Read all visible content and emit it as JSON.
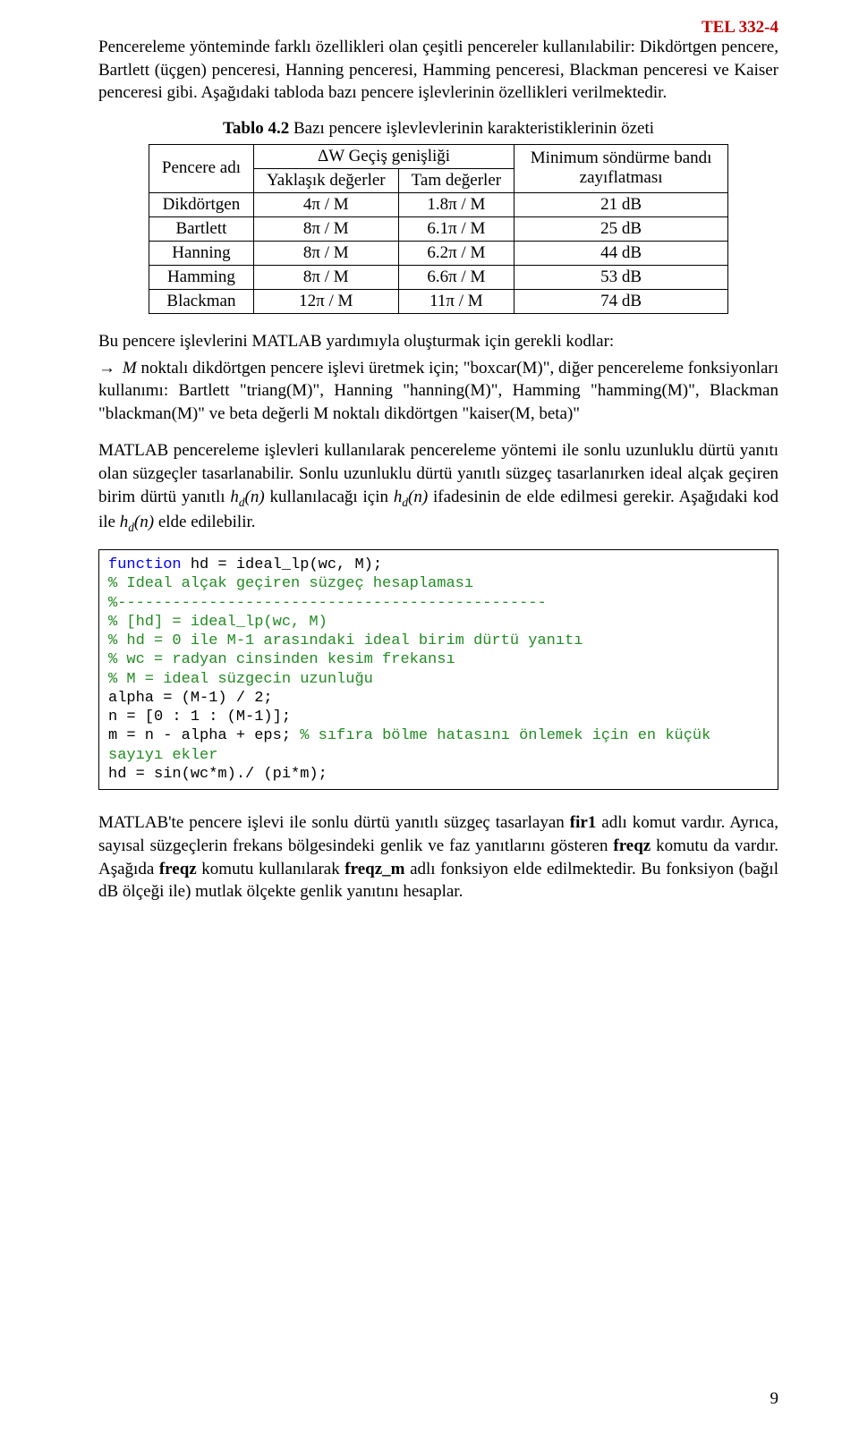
{
  "header": {
    "course_code": "TEL 332-4"
  },
  "intro_paragraph": "Pencereleme yönteminde farklı özellikleri olan çeşitli pencereler kullanılabilir: Dikdörtgen pencere, Bartlett (üçgen) penceresi, Hanning penceresi, Hamming penceresi, Blackman penceresi ve Kaiser penceresi gibi. Aşağıdaki tabloda bazı pencere işlevlerinin özellikleri verilmektedir.",
  "table": {
    "caption_bold": "Tablo 4.2",
    "caption_rest": " Bazı pencere işlevlevlerinin karakteristiklerinin özeti",
    "headers": {
      "col1": "Pencere adı",
      "group": "ΔW Geçiş genişliği",
      "sub1": "Yaklaşık değerler",
      "sub2": "Tam değerler",
      "col3": "Minimum söndürme bandı zayıflatması"
    },
    "rows": [
      {
        "name": "Dikdörtgen",
        "approx": "4π / M",
        "exact": "1.8π / M",
        "atten": "21 dB"
      },
      {
        "name": "Bartlett",
        "approx": "8π / M",
        "exact": "6.1π / M",
        "atten": "25 dB"
      },
      {
        "name": "Hanning",
        "approx": "8π / M",
        "exact": "6.2π / M",
        "atten": "44 dB"
      },
      {
        "name": "Hamming",
        "approx": "8π / M",
        "exact": "6.6π / M",
        "atten": "53 dB"
      },
      {
        "name": "Blackman",
        "approx": "12π / M",
        "exact": "11π / M",
        "atten": "74 dB"
      }
    ]
  },
  "after_table_line": "Bu pencere işlevlerini MATLAB yardımıyla oluşturmak için gerekli kodlar:",
  "bullet_paragraph": "M noktalı dikdörtgen pencere işlevi üretmek için; \"boxcar(M)\",  diğer pencereleme fonksiyonları kullanımı: Bartlett \"triang(M)\", Hanning \"hanning(M)\", Hamming \"hamming(M)\", Blackman \"blackman(M)\" ve beta değerli M noktalı dikdörtgen \"kaiser(M, beta)\"",
  "para_matlab1": "MATLAB pencereleme işlevleri kullanılarak pencereleme yöntemi ile sonlu uzunluklu dürtü yanıtı olan süzgeçler tasarlanabilir. Sonlu uzunluklu dürtü yanıtlı süzgeç tasarlanırken ideal alçak geçiren birim dürtü yanıtlı ",
  "para_matlab2": " kullanılacağı için ",
  "para_matlab3": " ifadesinin de elde edilmesi gerekir. Aşağıdaki kod ile ",
  "para_matlab4": " elde edilebilir.",
  "hd_fn": "h",
  "hd_sub": "d",
  "hd_arg": "(n)",
  "code": {
    "l01a": "function",
    "l01b": " hd = ideal_lp(wc, M);",
    "l02": "% Ideal alçak geçiren süzgeç hesaplaması",
    "l03": "%-----------------------------------------------",
    "l04": "% [hd] = ideal_lp(wc, M)",
    "l05": "% hd = 0 ile M-1 arasındaki ideal birim dürtü yanıtı",
    "l06": "% wc = radyan cinsinden kesim frekansı",
    "l07": "% M = ideal süzgecin uzunluğu",
    "l08": "alpha = (M-1) / 2;",
    "l09": "n = [0 : 1 : (M-1)];",
    "l10a": "m = n - alpha + eps; ",
    "l10b": "% sıfıra bölme hatasını önlemek için en küçük",
    "l10c": "sayıyı ekler",
    "l11": "hd = sin(wc*m)./ (pi*m);"
  },
  "final_paragraph": "MATLAB'te pencere işlevi ile sonlu dürtü yanıtlı süzgeç tasarlayan fir1 adlı komut vardır. Ayrıca, sayısal süzgeçlerin frekans bölgesindeki genlik ve faz yanıtlarını gösteren freqz komutu da vardır. Aşağıda freqz komutu kullanılarak freqz_m adlı fonksiyon elde edilmektedir. Bu fonksiyon (bağıl dB ölçeği ile) mutlak ölçekte genlik yanıtını hesaplar.",
  "final_bold": {
    "fir1": "fir1",
    "freqz": "freqz",
    "freqz_m": "freqz_m"
  },
  "page_number": "9"
}
